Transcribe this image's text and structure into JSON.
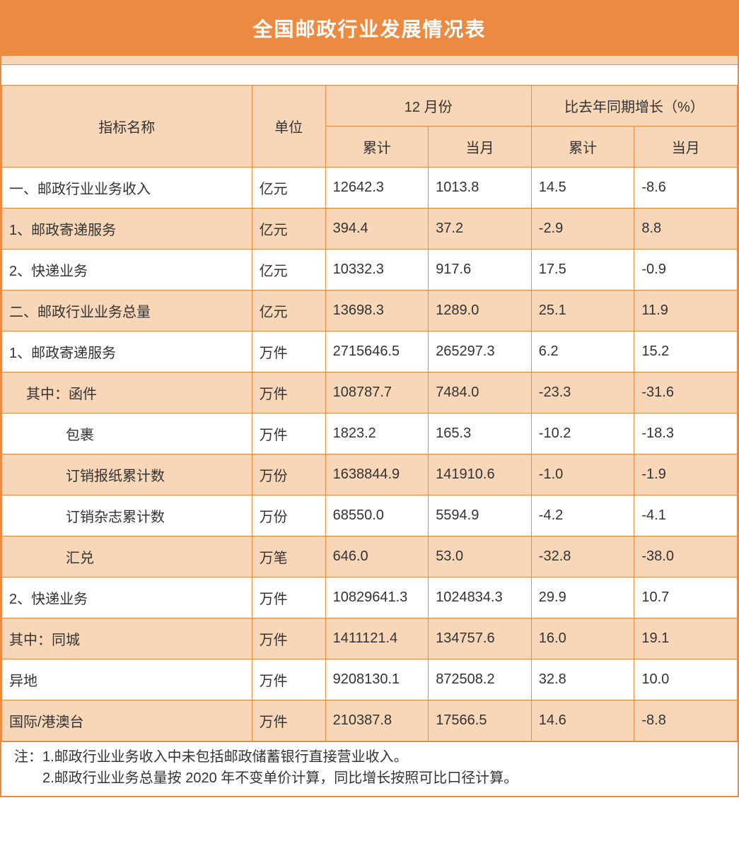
{
  "colors": {
    "header_bg": "#ed8a42",
    "strip_bg": "#f8d6b8",
    "border": "#ed8a42",
    "text": "#333333"
  },
  "title": "全国邮政行业发展情况表",
  "header": {
    "indicator": "指标名称",
    "unit": "单位",
    "group_month": "12 月份",
    "group_yoy": "比去年同期增长（%）",
    "cumulative": "累计",
    "current": "当月"
  },
  "rows": [
    {
      "label": "一、邮政行业业务收入",
      "indent": 0,
      "unit": "亿元",
      "cum": "12642.3",
      "cur": "1013.8",
      "yoy_cum": "14.5",
      "yoy_cur": "-8.6"
    },
    {
      "label": "1、邮政寄递服务",
      "indent": 0,
      "unit": "亿元",
      "cum": "394.4",
      "cur": "37.2",
      "yoy_cum": "-2.9",
      "yoy_cur": "8.8"
    },
    {
      "label": "2、快递业务",
      "indent": 0,
      "unit": "亿元",
      "cum": "10332.3",
      "cur": "917.6",
      "yoy_cum": "17.5",
      "yoy_cur": "-0.9"
    },
    {
      "label": "二、邮政行业业务总量",
      "indent": 0,
      "unit": "亿元",
      "cum": "13698.3",
      "cur": "1289.0",
      "yoy_cum": "25.1",
      "yoy_cur": "11.9"
    },
    {
      "label": "1、邮政寄递服务",
      "indent": 0,
      "unit": "万件",
      "cum": "2715646.5",
      "cur": "265297.3",
      "yoy_cum": "6.2",
      "yoy_cur": "15.2"
    },
    {
      "label": "其中：函件",
      "indent": 1,
      "unit": "万件",
      "cum": "108787.7",
      "cur": "7484.0",
      "yoy_cum": "-23.3",
      "yoy_cur": "-31.6"
    },
    {
      "label": "包裹",
      "indent": 2,
      "unit": "万件",
      "cum": "1823.2",
      "cur": "165.3",
      "yoy_cum": "-10.2",
      "yoy_cur": "-18.3"
    },
    {
      "label": "订销报纸累计数",
      "indent": 2,
      "unit": "万份",
      "cum": "1638844.9",
      "cur": "141910.6",
      "yoy_cum": "-1.0",
      "yoy_cur": "-1.9"
    },
    {
      "label": "订销杂志累计数",
      "indent": 2,
      "unit": "万份",
      "cum": "68550.0",
      "cur": "5594.9",
      "yoy_cum": "-4.2",
      "yoy_cur": "-4.1"
    },
    {
      "label": "汇兑",
      "indent": 2,
      "unit": "万笔",
      "cum": "646.0",
      "cur": "53.0",
      "yoy_cum": "-32.8",
      "yoy_cur": "-38.0"
    },
    {
      "label": "2、快递业务",
      "indent": 0,
      "unit": "万件",
      "cum": "10829641.3",
      "cur": "1024834.3",
      "yoy_cum": "29.9",
      "yoy_cur": "10.7"
    },
    {
      "label": "其中：同城",
      "indent": 0,
      "unit": "万件",
      "cum": "1411121.4",
      "cur": "134757.6",
      "yoy_cum": "16.0",
      "yoy_cur": "19.1"
    },
    {
      "label": "异地",
      "indent": 0,
      "unit": "万件",
      "cum": "9208130.1",
      "cur": "872508.2",
      "yoy_cum": "32.8",
      "yoy_cur": "10.0"
    },
    {
      "label": "国际/港澳台",
      "indent": 0,
      "unit": "万件",
      "cum": "210387.8",
      "cur": "17566.5",
      "yoy_cum": "14.6",
      "yoy_cur": "-8.8"
    }
  ],
  "note_prefix": "注：",
  "note_lines": [
    "1.邮政行业业务收入中未包括邮政储蓄银行直接营业收入。",
    "2.邮政行业业务总量按 2020 年不变单价计算，同比增长按照可比口径计算。"
  ]
}
